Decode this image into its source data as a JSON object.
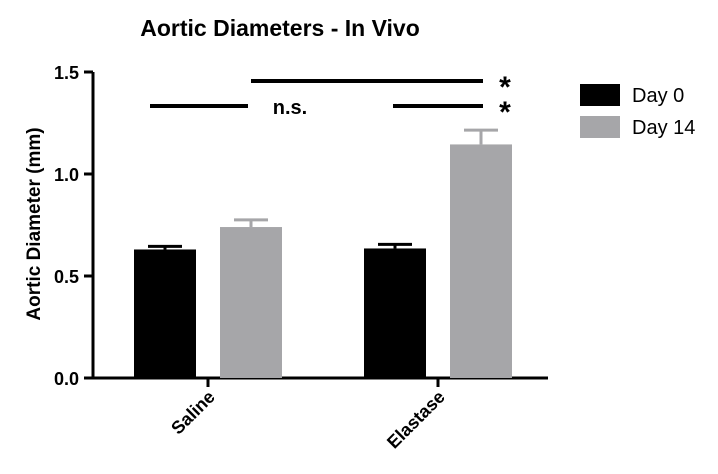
{
  "chart_data": {
    "type": "bar",
    "title": "Aortic Diameters - In  Vivo",
    "xlabel": "",
    "ylabel": "Aortic Diameter (mm)",
    "categories": [
      "Saline",
      "Elastase"
    ],
    "ylim": [
      0,
      1.5
    ],
    "yticks": [
      "0.0",
      "0.5",
      "1.0",
      "1.5"
    ],
    "grid": false,
    "legend_position": "top-right",
    "series": [
      {
        "name": "Day 0",
        "color": "#000000",
        "values": [
          0.63,
          0.635
        ],
        "errors": [
          0.015,
          0.02
        ]
      },
      {
        "name": "Day 14",
        "color": "#a6a6a9",
        "values": [
          0.74,
          1.145
        ],
        "errors": [
          0.035,
          0.07
        ]
      }
    ],
    "annotations": [
      {
        "label": "n.s.",
        "between": [
          "Saline Day 0",
          "Elastase Day 0"
        ]
      },
      {
        "label": "*",
        "between": [
          "Elastase Day 0",
          "Elastase Day 14"
        ]
      },
      {
        "label": "*",
        "between": [
          "Saline Day 14",
          "Elastase Day 14"
        ]
      }
    ]
  }
}
